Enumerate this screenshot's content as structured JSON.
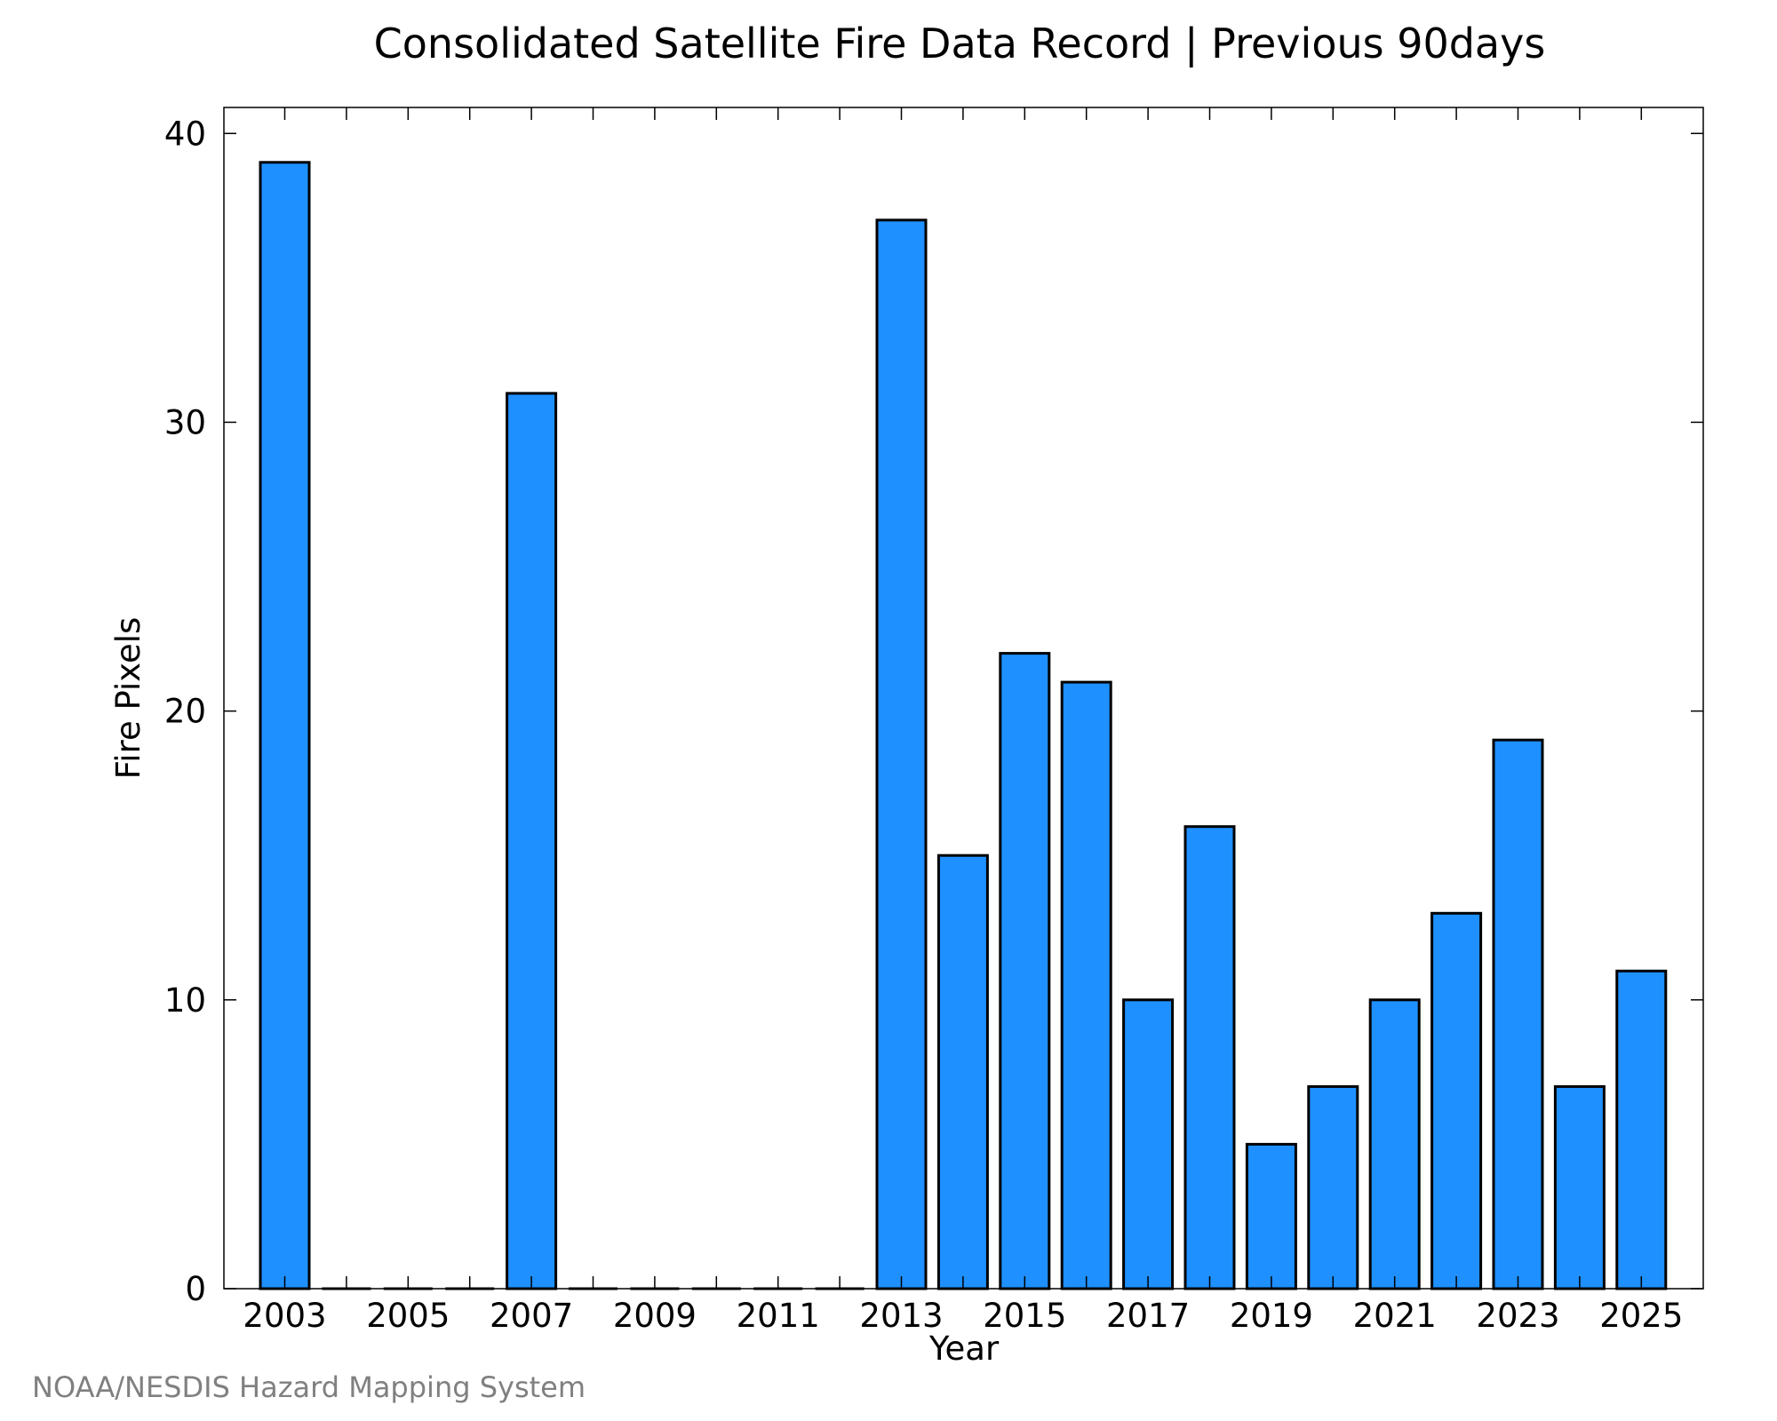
{
  "chart_data": {
    "type": "bar",
    "title": "Consolidated Satellite Fire Data Record | Previous 90days",
    "xlabel": "Year",
    "ylabel": "Fire Pixels",
    "categories": [
      "2003",
      "2004",
      "2005",
      "2006",
      "2007",
      "2008",
      "2009",
      "2010",
      "2011",
      "2012",
      "2013",
      "2014",
      "2015",
      "2016",
      "2017",
      "2018",
      "2019",
      "2020",
      "2021",
      "2022",
      "2023",
      "2024",
      "2025"
    ],
    "values": [
      39,
      0,
      0,
      0,
      31,
      0,
      0,
      0,
      0,
      0,
      37,
      15,
      22,
      21,
      10,
      16,
      5,
      7,
      10,
      13,
      19,
      7,
      11
    ],
    "x_tick_labels": [
      "2003",
      "2005",
      "2007",
      "2009",
      "2011",
      "2013",
      "2015",
      "2017",
      "2019",
      "2021",
      "2023",
      "2025"
    ],
    "y_ticks": [
      0,
      10,
      20,
      30,
      40
    ],
    "ylim": [
      0,
      40.9
    ],
    "grid": false,
    "bar_color": "#1E90FF",
    "bar_edge_color": "#000000"
  },
  "credit": "NOAA/NESDIS Hazard Mapping System",
  "colors": {
    "credit_text": "#808080"
  }
}
